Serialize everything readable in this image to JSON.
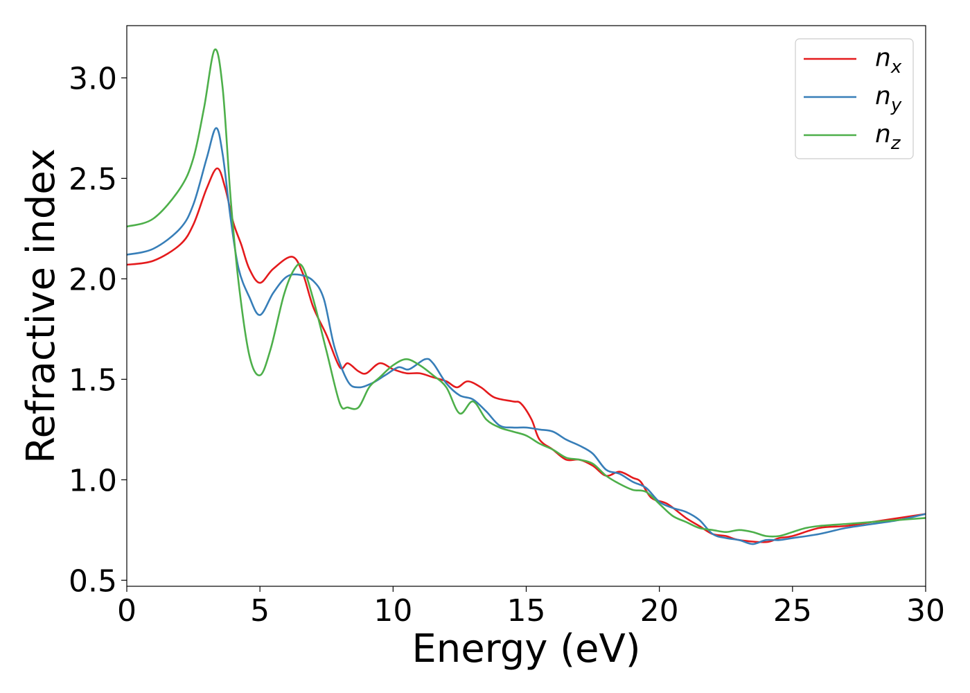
{
  "chart_data": {
    "type": "line",
    "xlabel": "Energy (eV)",
    "ylabel": "Refractive index",
    "xlim": [
      0,
      30
    ],
    "ylim": [
      0.47,
      3.26
    ],
    "xticks": [
      0,
      5,
      10,
      15,
      20,
      25,
      30
    ],
    "xtick_labels": [
      "0",
      "5",
      "10",
      "15",
      "20",
      "25",
      "30"
    ],
    "yticks": [
      0.5,
      1.0,
      1.5,
      2.0,
      2.5,
      3.0
    ],
    "ytick_labels": [
      "0.5",
      "1.0",
      "1.5",
      "2.0",
      "2.5",
      "3.0"
    ],
    "grid": false,
    "legend_position": "top-right",
    "series": [
      {
        "name": "n",
        "subscript": "x",
        "color": "#e41a1c",
        "points": [
          [
            0,
            2.07
          ],
          [
            1,
            2.09
          ],
          [
            2,
            2.17
          ],
          [
            2.5,
            2.27
          ],
          [
            3,
            2.45
          ],
          [
            3.4,
            2.55
          ],
          [
            3.7,
            2.45
          ],
          [
            4,
            2.28
          ],
          [
            4.3,
            2.17
          ],
          [
            4.6,
            2.05
          ],
          [
            5,
            1.98
          ],
          [
            5.5,
            2.05
          ],
          [
            6.2,
            2.11
          ],
          [
            6.6,
            2.03
          ],
          [
            7,
            1.86
          ],
          [
            7.5,
            1.72
          ],
          [
            8,
            1.56
          ],
          [
            8.3,
            1.58
          ],
          [
            8.7,
            1.54
          ],
          [
            9,
            1.53
          ],
          [
            9.5,
            1.58
          ],
          [
            10,
            1.55
          ],
          [
            10.5,
            1.53
          ],
          [
            11,
            1.53
          ],
          [
            11.5,
            1.51
          ],
          [
            12,
            1.49
          ],
          [
            12.4,
            1.46
          ],
          [
            12.8,
            1.49
          ],
          [
            13.3,
            1.46
          ],
          [
            13.8,
            1.41
          ],
          [
            14.5,
            1.39
          ],
          [
            14.8,
            1.38
          ],
          [
            15.2,
            1.3
          ],
          [
            15.5,
            1.2
          ],
          [
            16,
            1.15
          ],
          [
            16.5,
            1.1
          ],
          [
            17,
            1.1
          ],
          [
            17.5,
            1.07
          ],
          [
            18,
            1.02
          ],
          [
            18.5,
            1.04
          ],
          [
            19,
            1.01
          ],
          [
            19.3,
            0.99
          ],
          [
            19.7,
            0.91
          ],
          [
            20.3,
            0.88
          ],
          [
            21,
            0.81
          ],
          [
            21.5,
            0.77
          ],
          [
            22,
            0.73
          ],
          [
            22.5,
            0.72
          ],
          [
            23,
            0.7
          ],
          [
            24,
            0.69
          ],
          [
            24.5,
            0.71
          ],
          [
            25,
            0.72
          ],
          [
            26,
            0.76
          ],
          [
            27,
            0.77
          ],
          [
            28,
            0.79
          ],
          [
            29,
            0.81
          ],
          [
            30,
            0.83
          ]
        ]
      },
      {
        "name": "n",
        "subscript": "y",
        "color": "#377eb8",
        "points": [
          [
            0,
            2.12
          ],
          [
            1,
            2.15
          ],
          [
            2,
            2.25
          ],
          [
            2.5,
            2.37
          ],
          [
            3,
            2.6
          ],
          [
            3.35,
            2.75
          ],
          [
            3.6,
            2.62
          ],
          [
            3.9,
            2.3
          ],
          [
            4.2,
            2.05
          ],
          [
            4.6,
            1.91
          ],
          [
            5,
            1.82
          ],
          [
            5.5,
            1.93
          ],
          [
            6,
            2.01
          ],
          [
            6.5,
            2.02
          ],
          [
            7,
            1.99
          ],
          [
            7.4,
            1.9
          ],
          [
            7.8,
            1.66
          ],
          [
            8.3,
            1.49
          ],
          [
            8.7,
            1.46
          ],
          [
            9.2,
            1.48
          ],
          [
            9.7,
            1.52
          ],
          [
            10.2,
            1.56
          ],
          [
            10.6,
            1.55
          ],
          [
            11.2,
            1.6
          ],
          [
            11.5,
            1.58
          ],
          [
            12,
            1.48
          ],
          [
            12.5,
            1.42
          ],
          [
            13,
            1.4
          ],
          [
            13.5,
            1.34
          ],
          [
            14,
            1.27
          ],
          [
            14.5,
            1.26
          ],
          [
            15,
            1.26
          ],
          [
            15.5,
            1.25
          ],
          [
            16,
            1.24
          ],
          [
            16.5,
            1.2
          ],
          [
            17,
            1.17
          ],
          [
            17.5,
            1.13
          ],
          [
            18,
            1.05
          ],
          [
            18.5,
            1.03
          ],
          [
            19,
            0.99
          ],
          [
            19.5,
            0.96
          ],
          [
            20,
            0.89
          ],
          [
            20.5,
            0.86
          ],
          [
            21,
            0.84
          ],
          [
            21.5,
            0.8
          ],
          [
            22,
            0.73
          ],
          [
            22.5,
            0.71
          ],
          [
            23,
            0.7
          ],
          [
            23.5,
            0.68
          ],
          [
            24,
            0.7
          ],
          [
            24.5,
            0.7
          ],
          [
            25,
            0.71
          ],
          [
            26,
            0.73
          ],
          [
            27,
            0.76
          ],
          [
            28,
            0.78
          ],
          [
            29,
            0.8
          ],
          [
            30,
            0.83
          ]
        ]
      },
      {
        "name": "n",
        "subscript": "z",
        "color": "#4daf4a",
        "points": [
          [
            0,
            2.26
          ],
          [
            1,
            2.3
          ],
          [
            2,
            2.45
          ],
          [
            2.5,
            2.6
          ],
          [
            2.9,
            2.85
          ],
          [
            3.3,
            3.14
          ],
          [
            3.6,
            2.95
          ],
          [
            3.9,
            2.4
          ],
          [
            4.2,
            1.98
          ],
          [
            4.6,
            1.62
          ],
          [
            5,
            1.52
          ],
          [
            5.4,
            1.65
          ],
          [
            5.9,
            1.92
          ],
          [
            6.3,
            2.05
          ],
          [
            6.6,
            2.06
          ],
          [
            7,
            1.9
          ],
          [
            7.5,
            1.64
          ],
          [
            8,
            1.38
          ],
          [
            8.3,
            1.36
          ],
          [
            8.7,
            1.36
          ],
          [
            9.1,
            1.46
          ],
          [
            9.5,
            1.51
          ],
          [
            10,
            1.57
          ],
          [
            10.5,
            1.6
          ],
          [
            11,
            1.57
          ],
          [
            11.5,
            1.52
          ],
          [
            12,
            1.46
          ],
          [
            12.5,
            1.33
          ],
          [
            13,
            1.39
          ],
          [
            13.5,
            1.3
          ],
          [
            14,
            1.26
          ],
          [
            14.5,
            1.24
          ],
          [
            15,
            1.22
          ],
          [
            15.5,
            1.18
          ],
          [
            16,
            1.15
          ],
          [
            16.5,
            1.11
          ],
          [
            17,
            1.1
          ],
          [
            17.5,
            1.08
          ],
          [
            18,
            1.02
          ],
          [
            18.5,
            0.98
          ],
          [
            19,
            0.95
          ],
          [
            19.5,
            0.94
          ],
          [
            20,
            0.88
          ],
          [
            20.5,
            0.82
          ],
          [
            21,
            0.79
          ],
          [
            21.5,
            0.76
          ],
          [
            22,
            0.75
          ],
          [
            22.5,
            0.74
          ],
          [
            23,
            0.75
          ],
          [
            23.5,
            0.74
          ],
          [
            24,
            0.72
          ],
          [
            24.5,
            0.72
          ],
          [
            25,
            0.74
          ],
          [
            25.5,
            0.76
          ],
          [
            26,
            0.77
          ],
          [
            27,
            0.78
          ],
          [
            28,
            0.79
          ],
          [
            29,
            0.8
          ],
          [
            30,
            0.81
          ]
        ]
      }
    ]
  }
}
